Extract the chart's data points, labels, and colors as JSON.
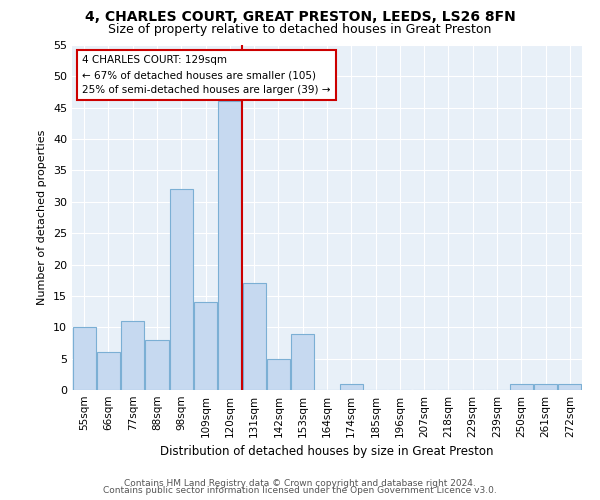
{
  "title1": "4, CHARLES COURT, GREAT PRESTON, LEEDS, LS26 8FN",
  "title2": "Size of property relative to detached houses in Great Preston",
  "xlabel": "Distribution of detached houses by size in Great Preston",
  "ylabel": "Number of detached properties",
  "categories": [
    "55sqm",
    "66sqm",
    "77sqm",
    "88sqm",
    "98sqm",
    "109sqm",
    "120sqm",
    "131sqm",
    "142sqm",
    "153sqm",
    "164sqm",
    "174sqm",
    "185sqm",
    "196sqm",
    "207sqm",
    "218sqm",
    "229sqm",
    "239sqm",
    "250sqm",
    "261sqm",
    "272sqm"
  ],
  "values": [
    10,
    6,
    11,
    8,
    32,
    14,
    46,
    17,
    5,
    9,
    0,
    1,
    0,
    0,
    0,
    0,
    0,
    0,
    1,
    1,
    1
  ],
  "bar_color": "#c6d9f0",
  "bar_edge_color": "#7bafd4",
  "property_line_x": 6.5,
  "annotation_title": "4 CHARLES COURT: 129sqm",
  "annotation_line1": "← 67% of detached houses are smaller (105)",
  "annotation_line2": "25% of semi-detached houses are larger (39) →",
  "annotation_box_color": "#ffffff",
  "annotation_box_edge": "#cc0000",
  "property_line_color": "#cc0000",
  "ylim": [
    0,
    55
  ],
  "yticks": [
    0,
    5,
    10,
    15,
    20,
    25,
    30,
    35,
    40,
    45,
    50,
    55
  ],
  "bg_color": "#e8f0f8",
  "footer1": "Contains HM Land Registry data © Crown copyright and database right 2024.",
  "footer2": "Contains public sector information licensed under the Open Government Licence v3.0.",
  "title1_fontsize": 10,
  "title2_fontsize": 9
}
